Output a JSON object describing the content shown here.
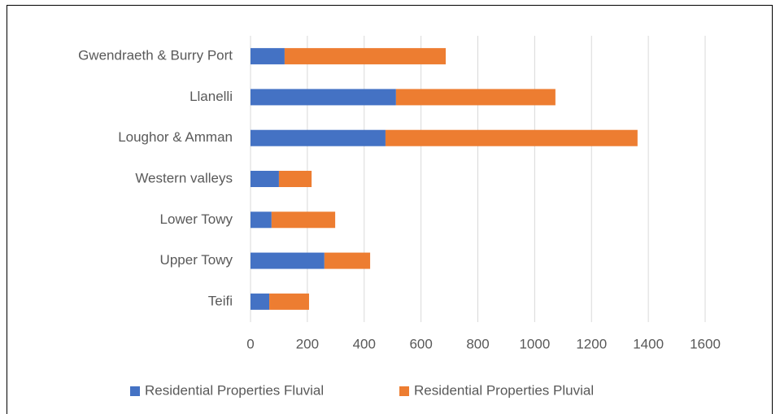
{
  "chart_data": {
    "type": "bar",
    "orientation": "horizontal",
    "stacked": true,
    "categories": [
      "Gwendraeth & Burry Port",
      "Llanelli",
      "Loughor & Amman",
      "Western valleys",
      "Lower Towy",
      "Upper Towy",
      "Teifi"
    ],
    "series": [
      {
        "name": "Residential Properties Fluvial",
        "color": "#4472c4",
        "values": [
          120,
          512,
          475,
          100,
          74,
          260,
          66
        ]
      },
      {
        "name": "Residential Properties Pluvial",
        "color": "#ed7d31",
        "values": [
          567,
          561,
          887,
          115,
          224,
          161,
          140
        ]
      }
    ],
    "xlim": [
      0,
      1600
    ],
    "xticks": [
      0,
      200,
      400,
      600,
      800,
      1000,
      1200,
      1400,
      1600
    ],
    "grid": true,
    "legend": "bottom"
  }
}
